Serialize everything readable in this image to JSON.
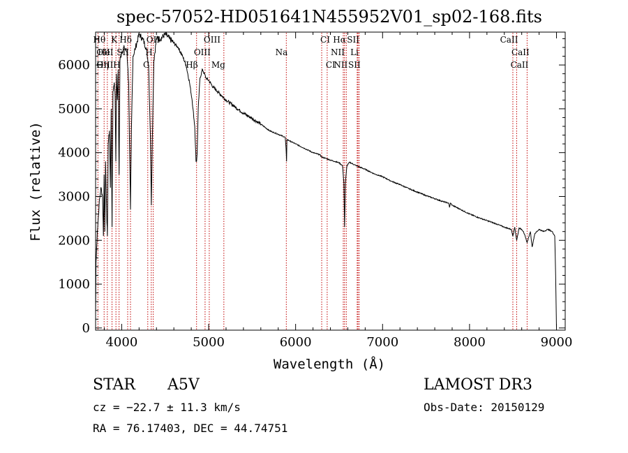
{
  "chart_data": {
    "type": "line",
    "title": "spec-57052-HD051641N455952V01_sp02-168.fits",
    "xlabel": "Wavelength (Å)",
    "ylabel": "Flux (relative)",
    "xlim": [
      3700,
      9100
    ],
    "ylim": [
      -50,
      6750
    ],
    "xticks": [
      4000,
      5000,
      6000,
      7000,
      8000,
      9000
    ],
    "xtick_labels": [
      "4000",
      "5000",
      "6000",
      "7000",
      "8000",
      "9000"
    ],
    "yticks": [
      0,
      1000,
      2000,
      3000,
      4000,
      5000,
      6000
    ],
    "ytick_labels": [
      "0",
      "1000",
      "2000",
      "3000",
      "4000",
      "5000",
      "6000"
    ],
    "series": [
      {
        "name": "spectrum",
        "x": [
          3700,
          3705,
          3720,
          3740,
          3760,
          3780,
          3790,
          3798,
          3806,
          3815,
          3830,
          3836,
          3845,
          3860,
          3870,
          3880,
          3889,
          3900,
          3915,
          3925,
          3933,
          3940,
          3950,
          3960,
          3970,
          3980,
          4000,
          4030,
          4060,
          4080,
          4090,
          4101,
          4112,
          4130,
          4160,
          4200,
          4240,
          4280,
          4310,
          4330,
          4341,
          4352,
          4370,
          4400,
          4450,
          4500,
          4550,
          4600,
          4650,
          4700,
          4740,
          4780,
          4810,
          4840,
          4855,
          4861,
          4868,
          4880,
          4900,
          4930,
          4970,
          5000,
          5050,
          5100,
          5150,
          5200,
          5300,
          5400,
          5500,
          5600,
          5700,
          5800,
          5880,
          5890,
          5896,
          5900,
          5950,
          6000,
          6100,
          6200,
          6280,
          6300,
          6360,
          6400,
          6450,
          6500,
          6540,
          6555,
          6563,
          6572,
          6590,
          6620,
          6700,
          6800,
          6900,
          7000,
          7100,
          7200,
          7300,
          7400,
          7500,
          7600,
          7700,
          7760,
          7770,
          7780,
          7800,
          7900,
          8000,
          8100,
          8200,
          8300,
          8400,
          8480,
          8498,
          8520,
          8542,
          8570,
          8600,
          8620,
          8662,
          8700,
          8720,
          8750,
          8800,
          8850,
          8900,
          8950,
          8980,
          8990,
          9000
        ],
        "y": [
          300,
          1500,
          2200,
          2800,
          3200,
          3000,
          2100,
          3500,
          2200,
          3800,
          2400,
          2100,
          4200,
          4500,
          3200,
          5000,
          2300,
          5400,
          5600,
          5300,
          3800,
          5800,
          5200,
          5900,
          3500,
          6100,
          6300,
          6400,
          6300,
          5600,
          4200,
          2700,
          4500,
          6200,
          6400,
          6700,
          6600,
          6400,
          6000,
          4400,
          2800,
          4300,
          6100,
          6600,
          6600,
          6700,
          6600,
          6500,
          6400,
          6200,
          6000,
          5600,
          5200,
          4600,
          3800,
          3800,
          4000,
          5000,
          5700,
          5900,
          5700,
          5650,
          5500,
          5400,
          5300,
          5200,
          5050,
          4900,
          4780,
          4650,
          4500,
          4420,
          4350,
          4100,
          3800,
          4300,
          4250,
          4200,
          4100,
          4000,
          3950,
          3900,
          3860,
          3830,
          3800,
          3770,
          3700,
          3300,
          2300,
          3300,
          3700,
          3780,
          3700,
          3620,
          3520,
          3450,
          3350,
          3270,
          3180,
          3100,
          3020,
          2950,
          2880,
          2850,
          2750,
          2850,
          2800,
          2700,
          2600,
          2520,
          2450,
          2380,
          2300,
          2250,
          2100,
          2300,
          2000,
          2280,
          2250,
          2200,
          1950,
          2200,
          1850,
          2150,
          2250,
          2200,
          2250,
          2200,
          2100,
          1200,
          0
        ]
      }
    ],
    "line_groups": [
      {
        "label": "Hθ",
        "x": 3798,
        "row": 0,
        "anchor": "end"
      },
      {
        "label": "K",
        "x": 3934,
        "row": 0,
        "anchor": "end"
      },
      {
        "label": "Hδ",
        "x": 4101,
        "row": 0,
        "anchor": "end"
      },
      {
        "label": "OII",
        "x": 4300,
        "row": 0,
        "anchor": "start"
      },
      {
        "label": "OIII",
        "x": 4959,
        "row": 0,
        "anchor": "start"
      },
      {
        "label": "CI",
        "x": 6300,
        "row": 0,
        "anchor": "start"
      },
      {
        "label": "Hα",
        "x": 6563,
        "row": 0,
        "anchor": "end"
      },
      {
        "label": "SII",
        "x": 6717,
        "row": 0,
        "anchor": "end"
      },
      {
        "label": "CaII",
        "x": 8542,
        "row": 0,
        "anchor": "end"
      },
      {
        "label": "OII",
        "x": 3727,
        "row": 1,
        "anchor": "start"
      },
      {
        "label": "HeI",
        "x": 3889,
        "row": 1,
        "anchor": "end"
      },
      {
        "label": "SII",
        "x": 4069,
        "row": 1,
        "anchor": "end"
      },
      {
        "label": "H",
        "x": 4340,
        "row": 1,
        "anchor": "end"
      },
      {
        "label": "OIII",
        "x": 5007,
        "row": 1,
        "anchor": "end"
      },
      {
        "label": "NII",
        "x": 6548,
        "row": 1,
        "anchor": "end"
      },
      {
        "label": "Li",
        "x": 6708,
        "row": 1,
        "anchor": "end"
      },
      {
        "label": "CaII",
        "x": 8498,
        "row": 1,
        "anchor": "start"
      },
      {
        "label": "OIII",
        "x": 3727,
        "row": 2,
        "anchor": "start"
      },
      {
        "label": "Hη",
        "x": 3835,
        "row": 2,
        "anchor": "end"
      },
      {
        "label": "H",
        "x": 3970,
        "row": 2,
        "anchor": "end"
      },
      {
        "label": "G",
        "x": 4307,
        "row": 2,
        "anchor": "end"
      },
      {
        "label": "Hβ",
        "x": 4861,
        "row": 2,
        "anchor": "end"
      },
      {
        "label": "Mg",
        "x": 5175,
        "row": 2,
        "anchor": "end"
      },
      {
        "label": "CI",
        "x": 6363,
        "row": 2,
        "anchor": "start"
      },
      {
        "label": "NII",
        "x": 6583,
        "row": 2,
        "anchor": "end"
      },
      {
        "label": "SII",
        "x": 6731,
        "row": 2,
        "anchor": "end"
      },
      {
        "label": "CaII",
        "x": 8662,
        "row": 2,
        "anchor": "end"
      },
      {
        "label": "Na",
        "x": 5893,
        "row": 1,
        "anchor": "end"
      }
    ],
    "line_positions": [
      3727,
      3798,
      3835,
      3889,
      3934,
      3970,
      4069,
      4101,
      4300,
      4340,
      4363,
      4861,
      4959,
      5007,
      5175,
      5893,
      6300,
      6363,
      6548,
      6563,
      6583,
      6708,
      6717,
      6731,
      8498,
      8542,
      8662
    ],
    "line_color": "#c00000"
  },
  "info": {
    "object_class": "STAR",
    "subclass": "A5V",
    "survey": "LAMOST DR3",
    "cz": "cz = −22.7 ± 11.3 km/s",
    "obs_date": "Obs-Date: 20150129",
    "coords": "RA =  76.17403, DEC =  44.74751"
  }
}
